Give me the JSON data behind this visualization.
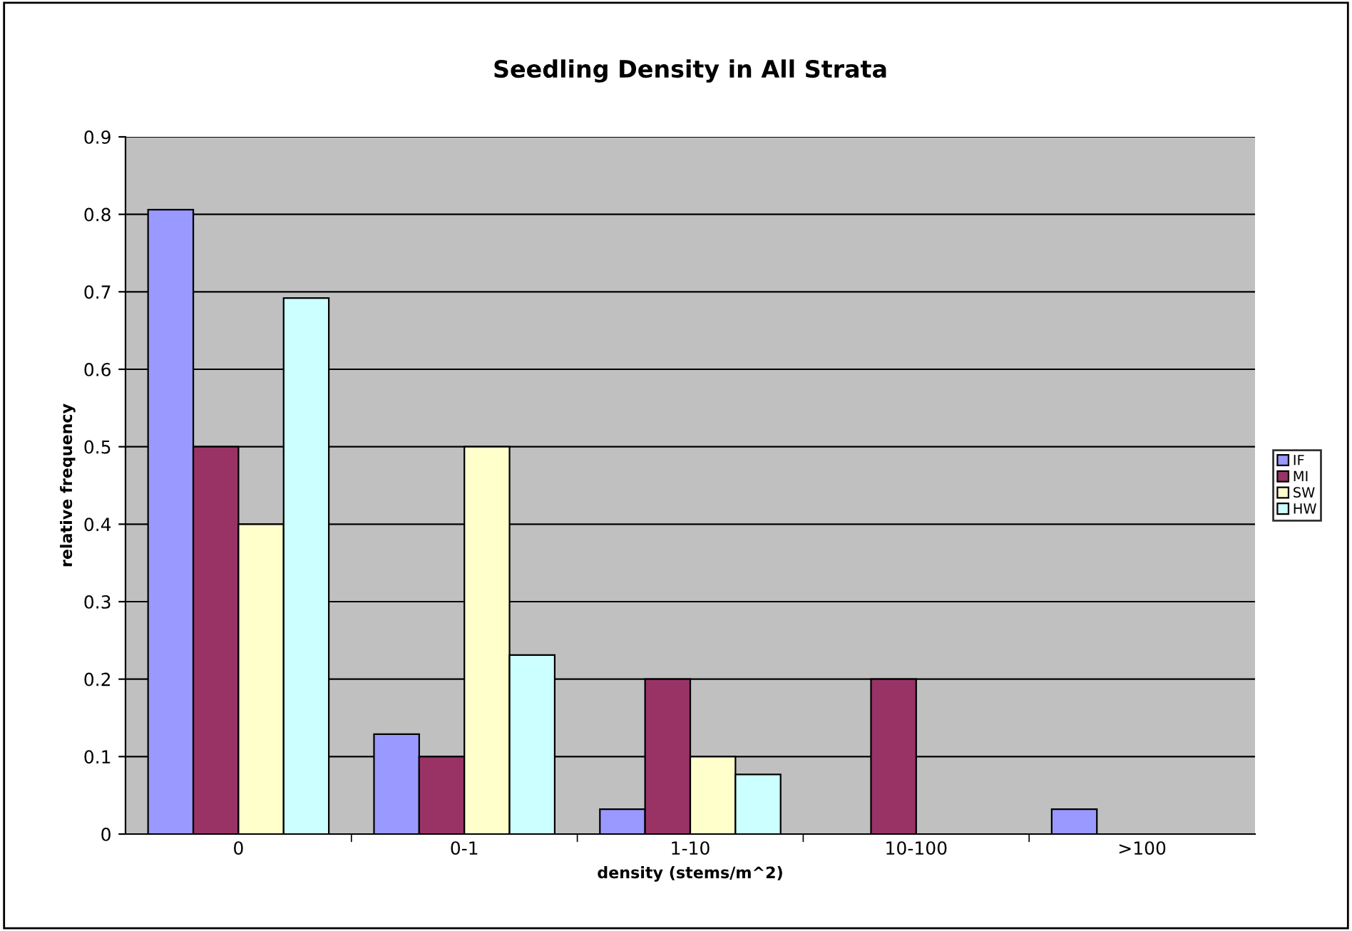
{
  "chart_data": {
    "type": "bar",
    "title": "Seedling Density in All Strata",
    "xlabel": "density (stems/m^2)",
    "ylabel": "relative frequency",
    "categories": [
      "0",
      "0-1",
      "1-10",
      "10-100",
      ">100"
    ],
    "series": [
      {
        "name": "IF",
        "color": "#9999ff",
        "values": [
          0.806,
          0.129,
          0.032,
          null,
          0.032
        ]
      },
      {
        "name": "MI",
        "color": "#993366",
        "values": [
          0.5,
          0.1,
          0.2,
          0.2,
          null
        ]
      },
      {
        "name": "SW",
        "color": "#ffffcc",
        "values": [
          0.4,
          0.5,
          0.1,
          null,
          null
        ]
      },
      {
        "name": "HW",
        "color": "#ccffff",
        "values": [
          0.692,
          0.231,
          0.077,
          null,
          null
        ]
      }
    ],
    "ylim": [
      0,
      0.9
    ],
    "yticks": [
      0,
      0.1,
      0.2,
      0.3,
      0.4,
      0.5,
      0.6,
      0.7,
      0.8,
      0.9
    ],
    "grid": "y",
    "legend": "right"
  }
}
